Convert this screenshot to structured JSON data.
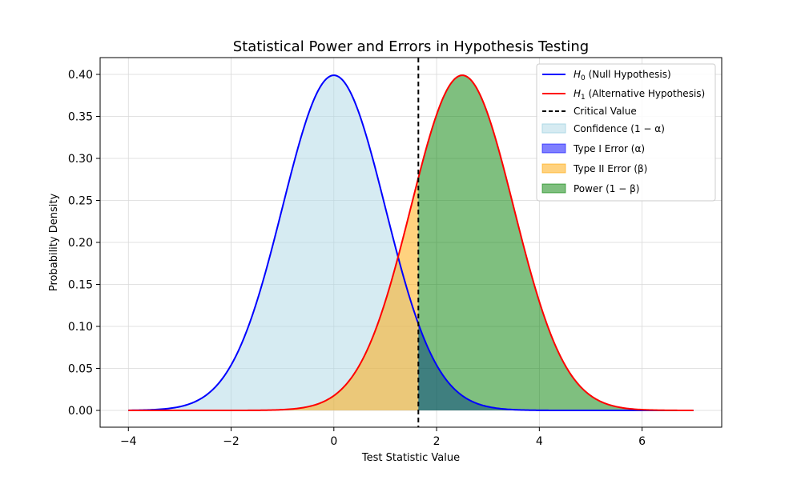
{
  "chart_data": {
    "type": "area",
    "title": "Statistical Power and Errors in Hypothesis Testing",
    "xlabel": "Test Statistic Value",
    "ylabel": "Probability Density",
    "xlim": [
      -4.55,
      7.55
    ],
    "ylim": [
      -0.02,
      0.42
    ],
    "x_ticks": [
      -4,
      -2,
      0,
      2,
      4,
      6
    ],
    "x_tick_labels": [
      "−4",
      "−2",
      "0",
      "2",
      "4",
      "6"
    ],
    "y_ticks": [
      0.0,
      0.05,
      0.1,
      0.15,
      0.2,
      0.25,
      0.3,
      0.35,
      0.4
    ],
    "y_tick_labels": [
      "0.00",
      "0.05",
      "0.10",
      "0.15",
      "0.20",
      "0.25",
      "0.30",
      "0.35",
      "0.40"
    ],
    "grid": true,
    "x_domain": [
      -4,
      7
    ],
    "critical_value": 1.645,
    "series": [
      {
        "name": "H0 (Null Hypothesis)",
        "distribution": "normal",
        "mean": 0,
        "sd": 1,
        "color": "#0000ff"
      },
      {
        "name": "H1 (Alternative Hypothesis)",
        "distribution": "normal",
        "mean": 2.5,
        "sd": 1,
        "color": "#ff0000"
      }
    ],
    "regions": [
      {
        "name": "Confidence (1 − α)",
        "curve": "H0",
        "from": -4,
        "to": 1.645,
        "color": "#add8e6",
        "opacity": 0.5
      },
      {
        "name": "Type I Error (α)",
        "curve": "H0",
        "from": 1.645,
        "to": 7,
        "color": "#0000ff",
        "opacity": 0.5
      },
      {
        "name": "Type II Error (β)",
        "curve": "H1",
        "from": -4,
        "to": 1.645,
        "color": "#ffa500",
        "opacity": 0.5
      },
      {
        "name": "Power (1 − β)",
        "curve": "H1",
        "from": 1.645,
        "to": 7,
        "color": "#008000",
        "opacity": 0.5
      }
    ],
    "legend_position": "top-right",
    "legend": {
      "h0_sym": "H",
      "h0_sub": "0",
      "h0_rest": " (Null Hypothesis)",
      "h1_sym": "H",
      "h1_sub": "1",
      "h1_rest": " (Alternative Hypothesis)",
      "critical": "Critical Value",
      "confidence": "Confidence (1 − α)",
      "type1": "Type I Error (α)",
      "type2": "Type II Error (β)",
      "power": "Power (1 − β)"
    },
    "colors": {
      "h0": "#0000ff",
      "h1": "#ff0000",
      "critical": "#000000",
      "confidence": "#add8e6",
      "type1": "#0000ff",
      "type2": "#ffa500",
      "power": "#008000"
    }
  }
}
